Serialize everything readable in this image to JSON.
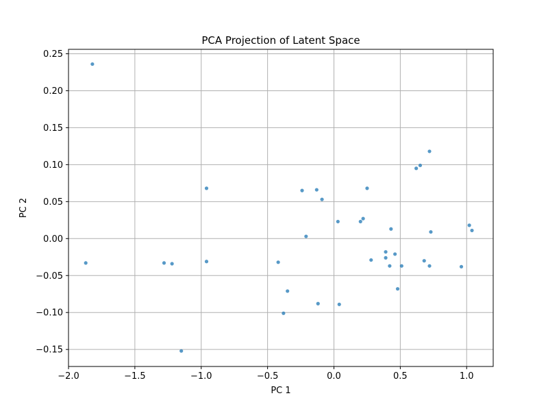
{
  "chart_data": {
    "type": "scatter",
    "title": "PCA Projection of Latent Space",
    "xlabel": "PC 1",
    "ylabel": "PC 2",
    "xlim": [
      -2.0,
      1.2
    ],
    "ylim": [
      -0.173,
      0.256
    ],
    "x_ticks": [
      -2.0,
      -1.5,
      -1.0,
      -0.5,
      0.0,
      0.5,
      1.0
    ],
    "x_tick_labels": [
      "−2.0",
      "−1.5",
      "−1.0",
      "−0.5",
      "0.0",
      "0.5",
      "1.0"
    ],
    "y_ticks": [
      -0.15,
      -0.1,
      -0.05,
      0.0,
      0.05,
      0.1,
      0.15,
      0.2,
      0.25
    ],
    "y_tick_labels": [
      "−0.15",
      "−0.10",
      "−0.05",
      "0.00",
      "0.05",
      "0.10",
      "0.15",
      "0.20",
      "0.25"
    ],
    "grid": true,
    "marker_color": "#1f77b4",
    "points": [
      {
        "x": -1.82,
        "y": 0.236
      },
      {
        "x": -1.87,
        "y": -0.033
      },
      {
        "x": -1.28,
        "y": -0.033
      },
      {
        "x": -1.22,
        "y": -0.034
      },
      {
        "x": -1.15,
        "y": -0.152
      },
      {
        "x": -0.96,
        "y": 0.068
      },
      {
        "x": -0.96,
        "y": -0.031
      },
      {
        "x": -0.42,
        "y": -0.032
      },
      {
        "x": -0.35,
        "y": -0.071
      },
      {
        "x": -0.38,
        "y": -0.101
      },
      {
        "x": -0.24,
        "y": 0.065
      },
      {
        "x": -0.21,
        "y": 0.003
      },
      {
        "x": -0.13,
        "y": 0.066
      },
      {
        "x": -0.09,
        "y": 0.053
      },
      {
        "x": -0.12,
        "y": -0.088
      },
      {
        "x": 0.03,
        "y": 0.023
      },
      {
        "x": 0.04,
        "y": -0.089
      },
      {
        "x": 0.2,
        "y": 0.023
      },
      {
        "x": 0.22,
        "y": 0.027
      },
      {
        "x": 0.25,
        "y": 0.068
      },
      {
        "x": 0.28,
        "y": -0.029
      },
      {
        "x": 0.39,
        "y": -0.018
      },
      {
        "x": 0.39,
        "y": -0.026
      },
      {
        "x": 0.42,
        "y": -0.037
      },
      {
        "x": 0.43,
        "y": 0.013
      },
      {
        "x": 0.46,
        "y": -0.021
      },
      {
        "x": 0.48,
        "y": -0.068
      },
      {
        "x": 0.51,
        "y": -0.037
      },
      {
        "x": 0.62,
        "y": 0.095
      },
      {
        "x": 0.65,
        "y": 0.099
      },
      {
        "x": 0.68,
        "y": -0.03
      },
      {
        "x": 0.72,
        "y": 0.118
      },
      {
        "x": 0.72,
        "y": -0.037
      },
      {
        "x": 0.73,
        "y": 0.009
      },
      {
        "x": 0.96,
        "y": -0.038
      },
      {
        "x": 1.02,
        "y": 0.018
      },
      {
        "x": 1.04,
        "y": 0.011
      }
    ]
  }
}
